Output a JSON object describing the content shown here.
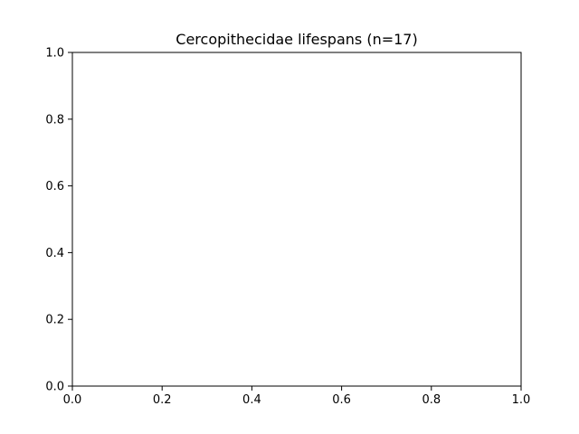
{
  "chart_data": {
    "type": "scatter",
    "title": "Cercopithecidae lifespans (n=17)",
    "xlabel": "",
    "ylabel": "",
    "xlim": [
      0.0,
      1.0
    ],
    "ylim": [
      0.0,
      1.0
    ],
    "x_ticks": [
      "0.0",
      "0.2",
      "0.4",
      "0.6",
      "0.8",
      "1.0"
    ],
    "y_ticks": [
      "0.0",
      "0.2",
      "0.4",
      "0.6",
      "0.8",
      "1.0"
    ],
    "grid": false,
    "series": []
  }
}
